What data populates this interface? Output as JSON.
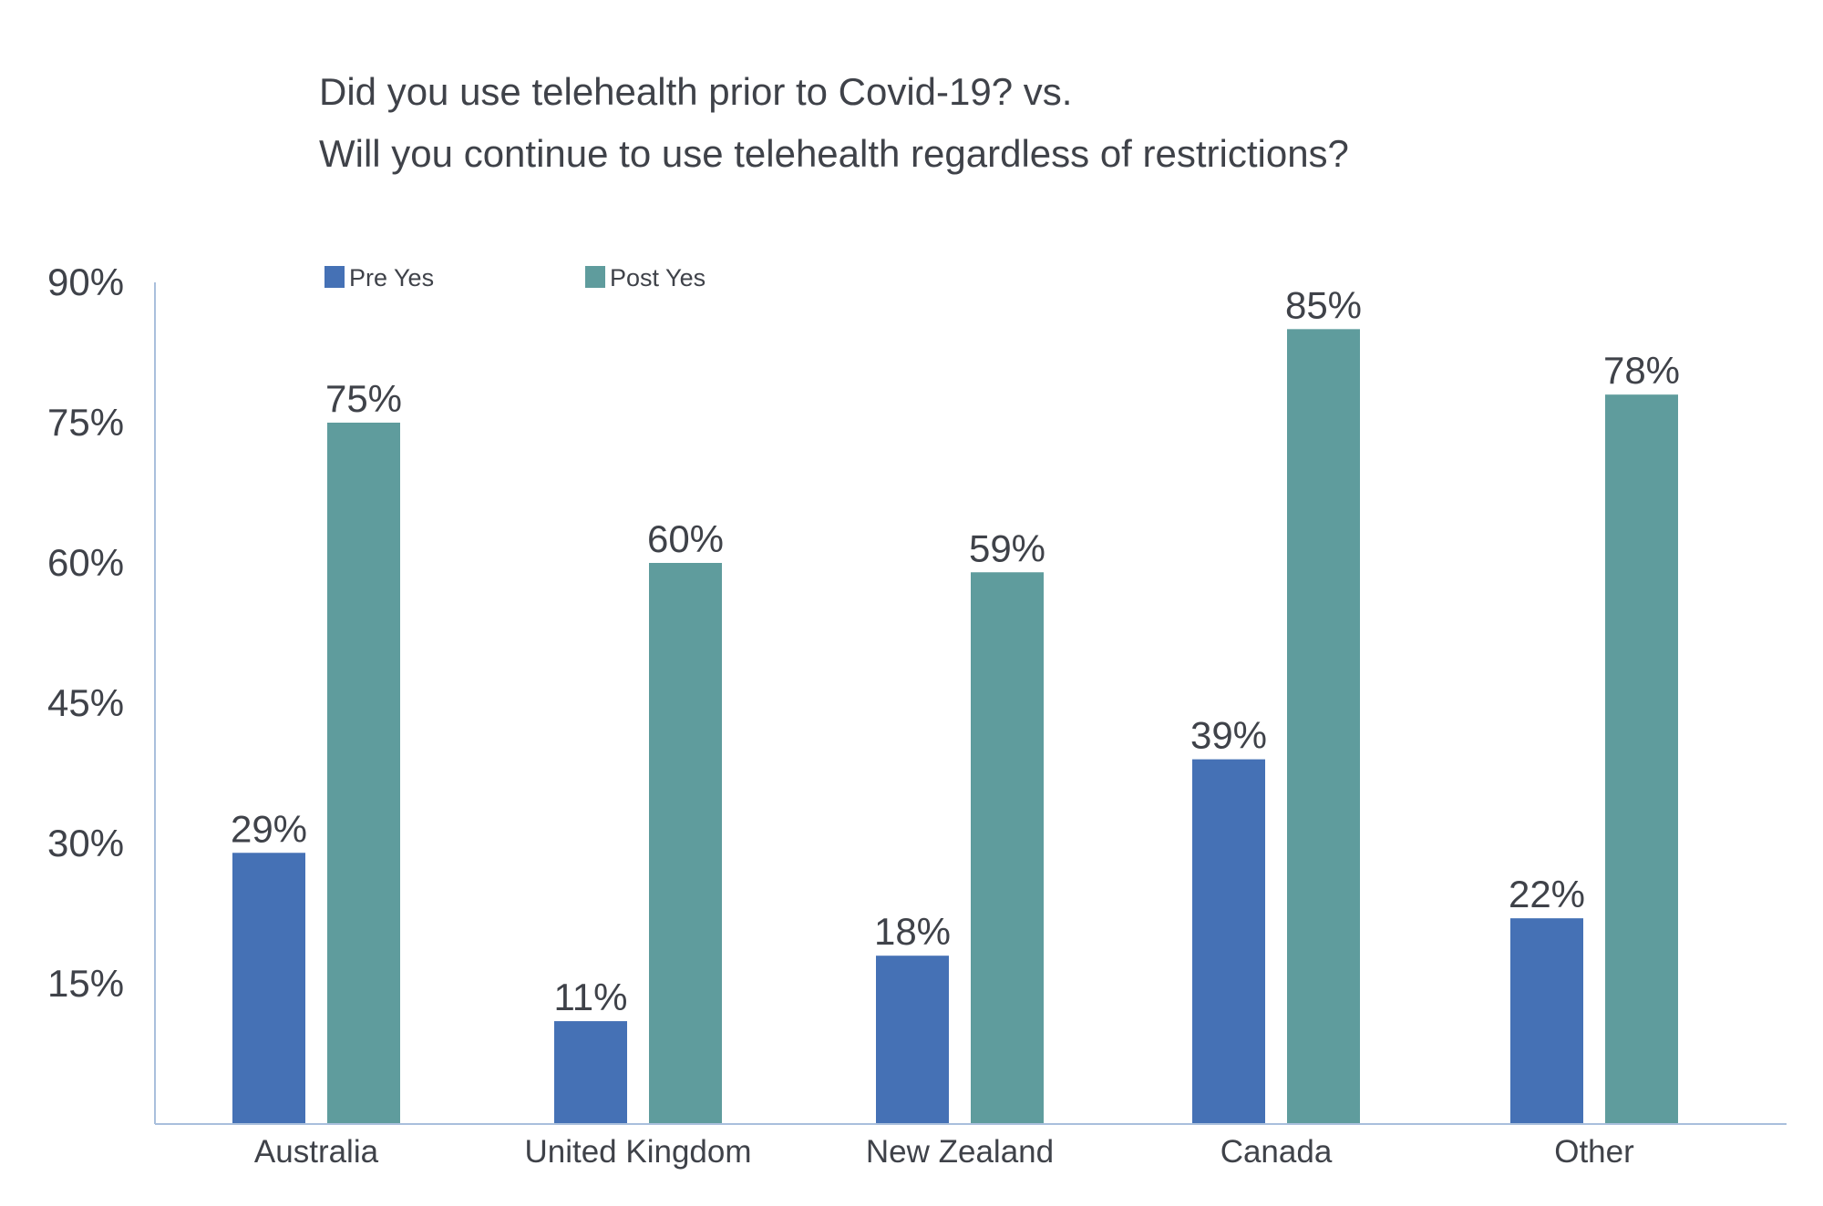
{
  "chart_data": {
    "type": "bar",
    "title": [
      "Did you use telehealth prior to Covid-19? vs.",
      "Will you continue to use telehealth regardless of restrictions?"
    ],
    "categories": [
      "Australia",
      "United Kingdom",
      "New Zealand",
      "Canada",
      "Other"
    ],
    "series": [
      {
        "name": "Pre Yes",
        "color": "#4571b5",
        "values": [
          29,
          11,
          18,
          39,
          22
        ],
        "labels": [
          "29%",
          "11%",
          "18%",
          "39%",
          "22%"
        ]
      },
      {
        "name": "Post Yes",
        "color": "#5f9c9d",
        "values": [
          75,
          60,
          59,
          85,
          78
        ],
        "labels": [
          "75%",
          "60%",
          "59%",
          "85%",
          "78%"
        ]
      }
    ],
    "yticks": [
      15,
      30,
      45,
      60,
      75,
      90
    ],
    "ytick_labels": [
      "15%",
      "30%",
      "45%",
      "60%",
      "75%",
      "90%"
    ],
    "ylim": [
      0,
      90
    ],
    "legend_position": "top-left",
    "grid": false
  }
}
